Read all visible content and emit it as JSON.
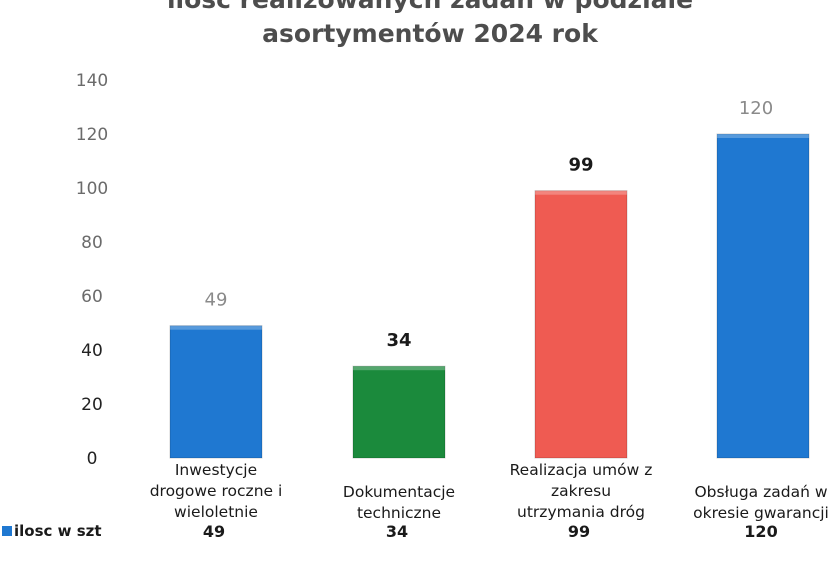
{
  "chart_data": {
    "type": "bar",
    "title_lines": [
      "ilosc realizowanych zadań w podziale",
      "asortymentów 2024 rok"
    ],
    "categories": [
      [
        "Inwestycje",
        "drogowe roczne i",
        "wieloletnie"
      ],
      [
        "Dokumentacje",
        "techniczne"
      ],
      [
        "Realizacja umów z",
        "zakresu",
        "utrzymania dróg"
      ],
      [
        "Obsługa zadań w",
        "okresie gwarancji"
      ]
    ],
    "series": [
      {
        "name": "ilosc w szt",
        "values": [
          49,
          34,
          99,
          120
        ],
        "colors": [
          "#1f78d1",
          "#1b8a3c",
          "#ef5b52",
          "#1f78d1"
        ]
      }
    ],
    "data_labels": [
      "49",
      "34",
      "99",
      "120"
    ],
    "table_values": [
      "49",
      "34",
      "99",
      "120"
    ],
    "yticks": [
      "0",
      "20",
      "40",
      "60",
      "80",
      "100",
      "120",
      "140"
    ],
    "ylim": [
      0,
      140
    ],
    "grid": false,
    "legend": {
      "label": "ilosc w szt",
      "placement": "bottom-left",
      "color": "#1f78d1"
    }
  }
}
